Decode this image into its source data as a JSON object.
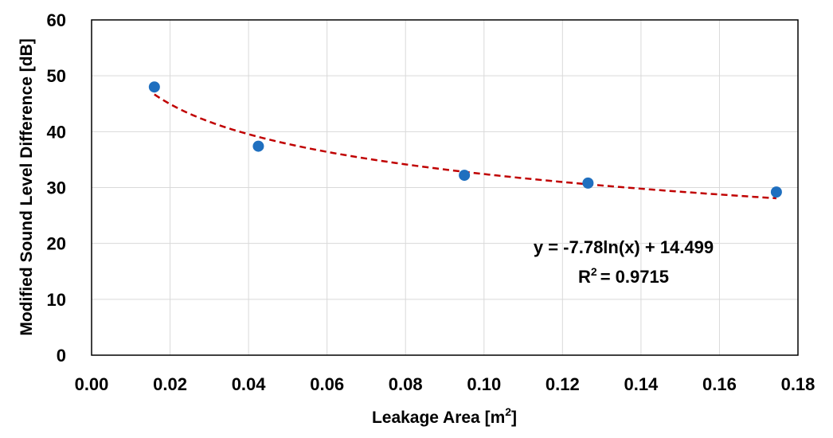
{
  "chart_data": {
    "type": "scatter",
    "title": "",
    "xlabel": "Leakage Area [m",
    "xlabel_sup": "2",
    "xlabel_end": "]",
    "ylabel": "Modified Sound Level Difference [dB]",
    "xlim": [
      0,
      0.18
    ],
    "ylim": [
      0,
      60
    ],
    "x_ticks": [
      0,
      0.02,
      0.04,
      0.06,
      0.08,
      0.1,
      0.12,
      0.14,
      0.16,
      0.18
    ],
    "x_tick_labels": [
      "0.00",
      "0.02",
      "0.04",
      "0.06",
      "0.08",
      "0.10",
      "0.12",
      "0.14",
      "0.16",
      "0.18"
    ],
    "y_ticks": [
      0,
      10,
      20,
      30,
      40,
      50,
      60
    ],
    "y_tick_labels": [
      "0",
      "10",
      "20",
      "30",
      "40",
      "50",
      "60"
    ],
    "grid": true,
    "points": {
      "x": [
        0.016,
        0.0425,
        0.095,
        0.1265,
        0.1745
      ],
      "y": [
        48.0,
        37.4,
        32.2,
        30.8,
        29.2
      ],
      "color": "#1f6fbf"
    },
    "trendline": {
      "type": "log",
      "a": -7.78,
      "b": 14.499,
      "x_start": 0.016,
      "x_end": 0.1745,
      "color": "#c00000",
      "style": "dashed"
    },
    "annotation_lines": [
      "y = -7.78ln(x) + 14.499",
      "R",
      "= 0.9715"
    ],
    "annotation_sup": "2"
  }
}
